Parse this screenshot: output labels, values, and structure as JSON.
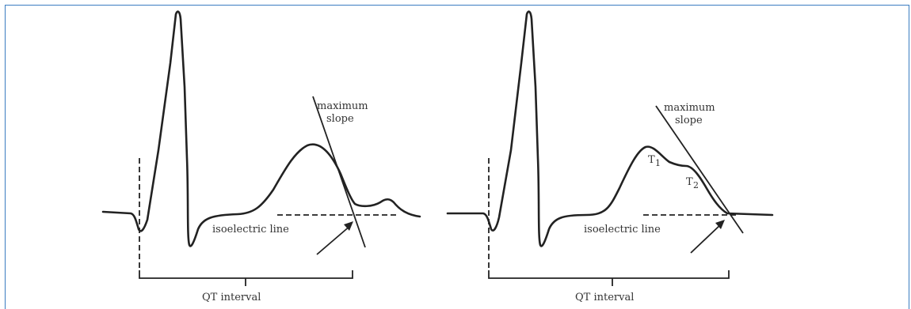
{
  "panels": [
    {
      "slope_label_line1": "maximum",
      "slope_label_line2": "slope",
      "isoelectric_label": "isoelectric line",
      "qt_label": "QT interval"
    },
    {
      "slope_label_line1": "maximum",
      "slope_label_line2": "slope",
      "isoelectric_label": "isoelectric line",
      "qt_label": "QT interval",
      "t1_label": "T",
      "t1_sub": "1",
      "t2_label": "T",
      "t2_sub": "2"
    }
  ]
}
